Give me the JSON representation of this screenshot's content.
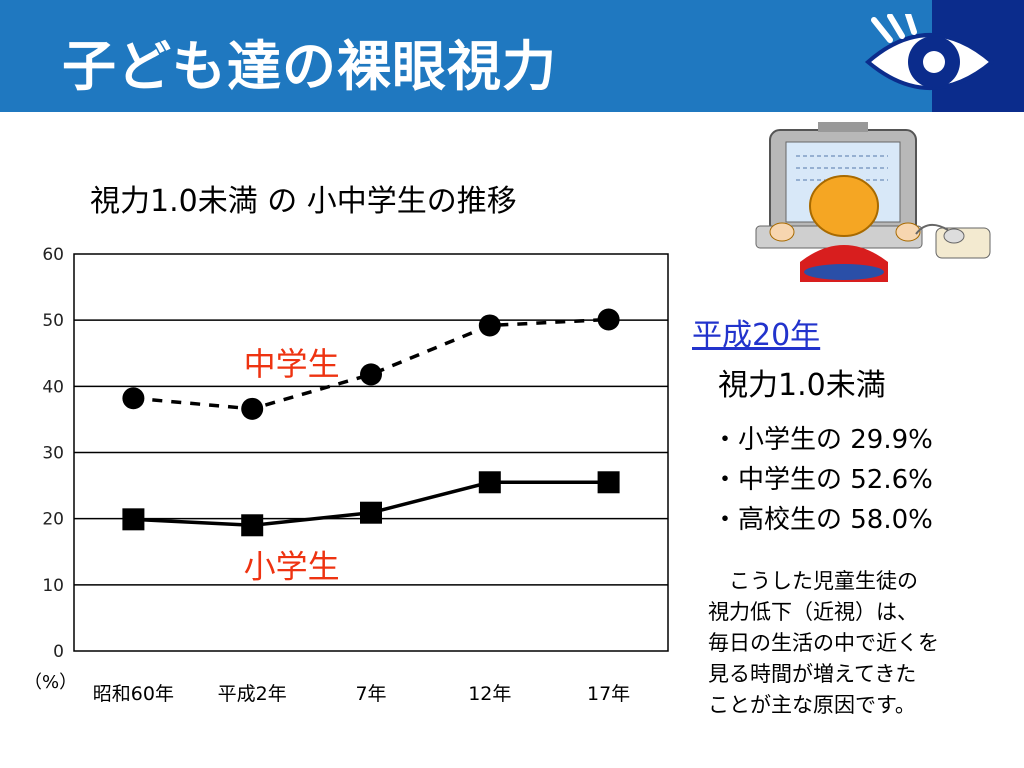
{
  "slide": {
    "title": "子ども達の裸眼視力",
    "eye_icon": "eye-icon",
    "illustration": "child-at-computer-illustration"
  },
  "chart_data": {
    "type": "line",
    "title": "視力1.0未満 の 小中学生の推移",
    "categories": [
      "昭和60年",
      "平成2年",
      "7年",
      "12年",
      "17年"
    ],
    "ylim": [
      0,
      60
    ],
    "yticks": [
      "0",
      "10",
      "20",
      "30",
      "40",
      "50",
      "60"
    ],
    "yunit": "（%）",
    "grid": true,
    "series": [
      {
        "name": "中学生",
        "values": [
          38.2,
          36.6,
          41.8,
          49.2,
          50.1
        ],
        "style": "dashed",
        "marker": "circle",
        "label_color": "#ee3311"
      },
      {
        "name": "小学生",
        "values": [
          19.9,
          19.0,
          20.9,
          25.5,
          25.5
        ],
        "style": "solid",
        "marker": "square",
        "label_color": "#ee3311"
      }
    ]
  },
  "side": {
    "year": "平成20年",
    "heading": "視力1.0未満",
    "items": [
      "・小学生の 29.9%",
      "・中学生の 52.6%",
      "・高校生の 58.0%"
    ],
    "note_lines": [
      "　こうした児童生徒の",
      "視力低下（近視）は、",
      "毎日の生活の中で近くを",
      "見る時間が増えてきた",
      "ことが主な原因です。"
    ]
  }
}
